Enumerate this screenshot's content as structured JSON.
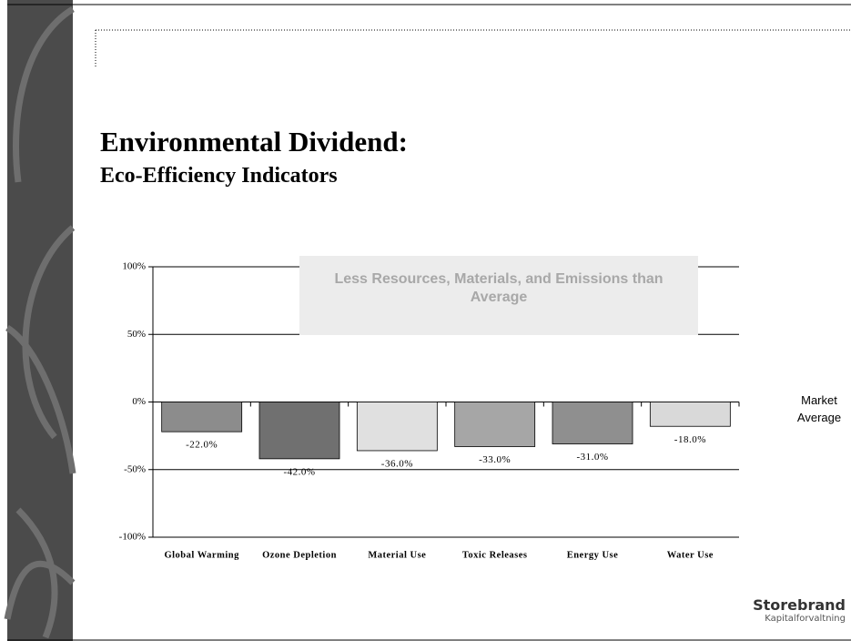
{
  "chart_data": {
    "type": "bar",
    "title": "Environmental Dividend:",
    "subtitle": "Eco-Efficiency Indicators",
    "annotation": "Less Resources, Materials, and Emissions than Average",
    "reference_label": "Market Average",
    "categories": [
      "Global Warming",
      "Ozone Depletion",
      "Material Use",
      "Toxic Releases",
      "Energy Use",
      "Water Use"
    ],
    "values": [
      -22,
      -42,
      -36,
      -33,
      -31,
      -18
    ],
    "value_labels": [
      "-22.0%",
      "-42.0%",
      "-36.0%",
      "-33.0%",
      "-31.0%",
      "-18.0%"
    ],
    "colors": [
      "#8c8c8c",
      "#707070",
      "#e0e0e0",
      "#a6a6a6",
      "#8f8f8f",
      "#d9d9d9"
    ],
    "ylim": [
      -100,
      100
    ],
    "yticks": [
      {
        "value": -100,
        "label": "-100%"
      },
      {
        "value": -50,
        "label": "-50%"
      },
      {
        "value": 0,
        "label": "0%"
      },
      {
        "value": 50,
        "label": "50%"
      },
      {
        "value": 100,
        "label": "100%"
      }
    ],
    "grid": true
  },
  "logo": {
    "name": "Storebrand",
    "tagline": "Kapitalforvaltning"
  }
}
